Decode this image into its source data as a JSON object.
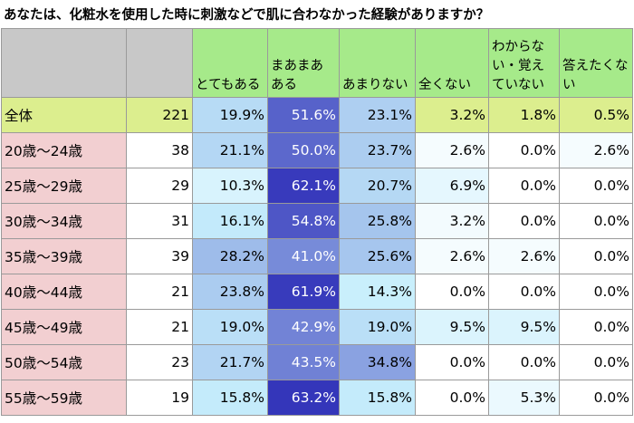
{
  "title": "あなたは、化粧水を使用した時に刺激などで肌に合わなかった経験がありますか？",
  "chart_data": {
    "type": "table",
    "columns": [
      "とてもある",
      "まあまあある",
      "あまりない",
      "全くない",
      "わからない・覚えていない",
      "答えたくない"
    ],
    "rows": [
      {
        "label": "全体",
        "n": "221",
        "values": [
          "19.9%",
          "51.6%",
          "23.1%",
          "3.2%",
          "1.8%",
          "0.5%"
        ],
        "pct": [
          19.9,
          51.6,
          23.1,
          3.2,
          1.8,
          0.5
        ]
      },
      {
        "label": "20歳～24歳",
        "n": "38",
        "values": [
          "21.1%",
          "50.0%",
          "23.7%",
          "2.6%",
          "0.0%",
          "2.6%"
        ],
        "pct": [
          21.1,
          50.0,
          23.7,
          2.6,
          0.0,
          2.6
        ]
      },
      {
        "label": "25歳～29歳",
        "n": "29",
        "values": [
          "10.3%",
          "62.1%",
          "20.7%",
          "6.9%",
          "0.0%",
          "0.0%"
        ],
        "pct": [
          10.3,
          62.1,
          20.7,
          6.9,
          0.0,
          0.0
        ]
      },
      {
        "label": "30歳～34歳",
        "n": "31",
        "values": [
          "16.1%",
          "54.8%",
          "25.8%",
          "3.2%",
          "0.0%",
          "0.0%"
        ],
        "pct": [
          16.1,
          54.8,
          25.8,
          3.2,
          0.0,
          0.0
        ]
      },
      {
        "label": "35歳～39歳",
        "n": "39",
        "values": [
          "28.2%",
          "41.0%",
          "25.6%",
          "2.6%",
          "2.6%",
          "0.0%"
        ],
        "pct": [
          28.2,
          41.0,
          25.6,
          2.6,
          2.6,
          0.0
        ]
      },
      {
        "label": "40歳～44歳",
        "n": "21",
        "values": [
          "23.8%",
          "61.9%",
          "14.3%",
          "0.0%",
          "0.0%",
          "0.0%"
        ],
        "pct": [
          23.8,
          61.9,
          14.3,
          0.0,
          0.0,
          0.0
        ]
      },
      {
        "label": "45歳～49歳",
        "n": "21",
        "values": [
          "19.0%",
          "42.9%",
          "19.0%",
          "9.5%",
          "9.5%",
          "0.0%"
        ],
        "pct": [
          19.0,
          42.9,
          19.0,
          9.5,
          9.5,
          0.0
        ]
      },
      {
        "label": "50歳～54歳",
        "n": "23",
        "values": [
          "21.7%",
          "43.5%",
          "34.8%",
          "0.0%",
          "0.0%",
          "0.0%"
        ],
        "pct": [
          21.7,
          43.5,
          34.8,
          0.0,
          0.0,
          0.0
        ]
      },
      {
        "label": "55歳～59歳",
        "n": "19",
        "values": [
          "15.8%",
          "63.2%",
          "15.8%",
          "0.0%",
          "5.3%",
          "0.0%"
        ],
        "pct": [
          15.8,
          63.2,
          15.8,
          0.0,
          5.3,
          0.0
        ]
      }
    ],
    "colors": {
      "header_gray": "#c8c8c8",
      "header_green": "#a6ea8a",
      "total_label": "#dcee8e",
      "age_label": "#f2cfd1",
      "heat_low": "#ffffff",
      "heat_mid": "#c6eefc",
      "heat_high": "#2f2fb8",
      "text_light": "#ffffff",
      "text_dark": "#000000"
    }
  }
}
